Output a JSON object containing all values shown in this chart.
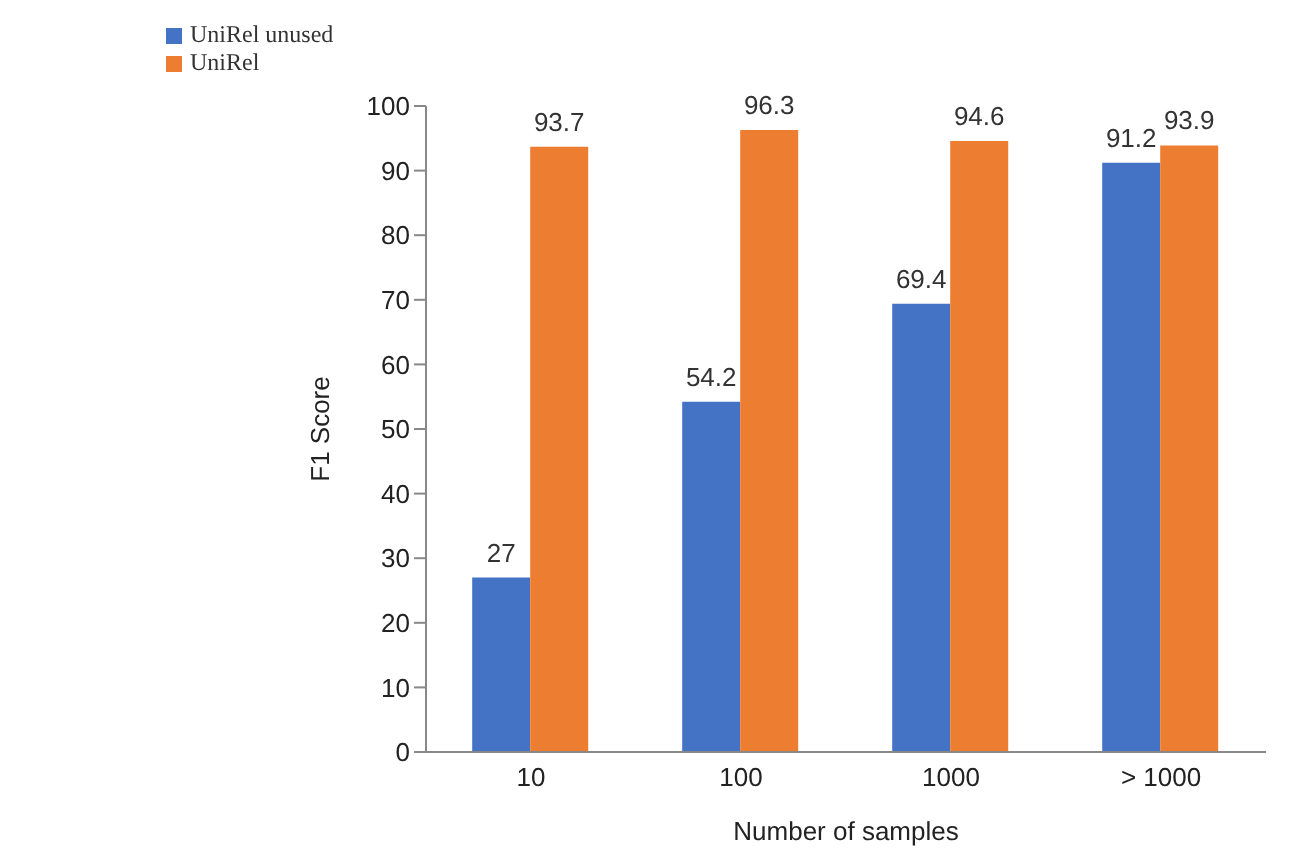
{
  "chart_data": {
    "type": "bar",
    "xlabel": "Number of samples",
    "ylabel": "F1 Score",
    "categories": [
      "10",
      "100",
      "1000",
      "> 1000"
    ],
    "series": [
      {
        "name": "UniRel unused",
        "color": "#4472c4",
        "values": [
          27,
          54.2,
          69.4,
          91.2
        ]
      },
      {
        "name": "UniRel",
        "color": "#ed7d31",
        "values": [
          93.7,
          96.3,
          94.6,
          93.9
        ]
      }
    ],
    "ylim": [
      0,
      100
    ],
    "yticks": [
      0,
      10,
      20,
      30,
      40,
      50,
      60,
      70,
      80,
      90,
      100
    ],
    "data_labels": true,
    "legend": "top left",
    "grid": false
  }
}
